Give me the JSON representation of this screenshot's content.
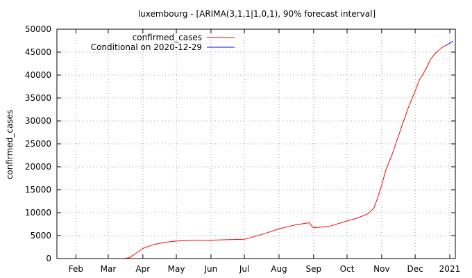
{
  "chart_data": {
    "type": "line",
    "title": "luxembourg -  [ARIMA(3,1,1|1,0,1), 90% forecast interval]",
    "xlabel": "",
    "ylabel": "confirmed_cases",
    "xlim": [
      "2020-01-15",
      "2021-01-06"
    ],
    "ylim": [
      0,
      50000
    ],
    "grid": true,
    "legend_position": "top-left",
    "x_tick_labels": [
      {
        "label": "Feb",
        "date": "2020-02-01"
      },
      {
        "label": "Mar",
        "date": "2020-03-01"
      },
      {
        "label": "Apr",
        "date": "2020-04-01"
      },
      {
        "label": "May",
        "date": "2020-05-01"
      },
      {
        "label": "Jun",
        "date": "2020-06-01"
      },
      {
        "label": "Jul",
        "date": "2020-07-01"
      },
      {
        "label": "Aug",
        "date": "2020-08-01"
      },
      {
        "label": "Sep",
        "date": "2020-09-01"
      },
      {
        "label": "Oct",
        "date": "2020-10-01"
      },
      {
        "label": "Nov",
        "date": "2020-11-01"
      },
      {
        "label": "Dec",
        "date": "2020-12-01"
      },
      {
        "label": "2021",
        "date": "2021-01-01"
      }
    ],
    "y_ticks": [
      0,
      5000,
      10000,
      15000,
      20000,
      25000,
      30000,
      35000,
      40000,
      45000,
      50000
    ],
    "series": [
      {
        "name": "confirmed_cases",
        "color": "#ff0000",
        "x": [
          "2020-03-01",
          "2020-03-15",
          "2020-03-20",
          "2020-03-25",
          "2020-04-01",
          "2020-04-10",
          "2020-04-20",
          "2020-05-01",
          "2020-05-15",
          "2020-06-01",
          "2020-06-15",
          "2020-07-01",
          "2020-07-10",
          "2020-07-20",
          "2020-08-01",
          "2020-08-15",
          "2020-08-25",
          "2020-08-28",
          "2020-09-01",
          "2020-09-15",
          "2020-10-01",
          "2020-10-10",
          "2020-10-20",
          "2020-10-25",
          "2020-10-28",
          "2020-11-01",
          "2020-11-05",
          "2020-11-10",
          "2020-11-15",
          "2020-11-20",
          "2020-11-25",
          "2020-12-01",
          "2020-12-05",
          "2020-12-10",
          "2020-12-15",
          "2020-12-20",
          "2020-12-25",
          "2020-12-29"
        ],
        "y": [
          0,
          0,
          200,
          1000,
          2200,
          3000,
          3500,
          3800,
          4000,
          4000,
          4100,
          4200,
          4800,
          5500,
          6500,
          7300,
          7700,
          7800,
          6700,
          7000,
          8200,
          8800,
          9800,
          11000,
          13000,
          16000,
          19500,
          22500,
          26000,
          29500,
          33000,
          36500,
          39000,
          41000,
          43500,
          45000,
          46000,
          46500
        ]
      },
      {
        "name": "Conditional on 2020-12-29",
        "color": "#0000ff",
        "x": [
          "2020-12-29",
          "2020-12-31",
          "2021-01-02",
          "2021-01-04"
        ],
        "y": [
          46500,
          46800,
          47100,
          47400
        ]
      }
    ]
  }
}
